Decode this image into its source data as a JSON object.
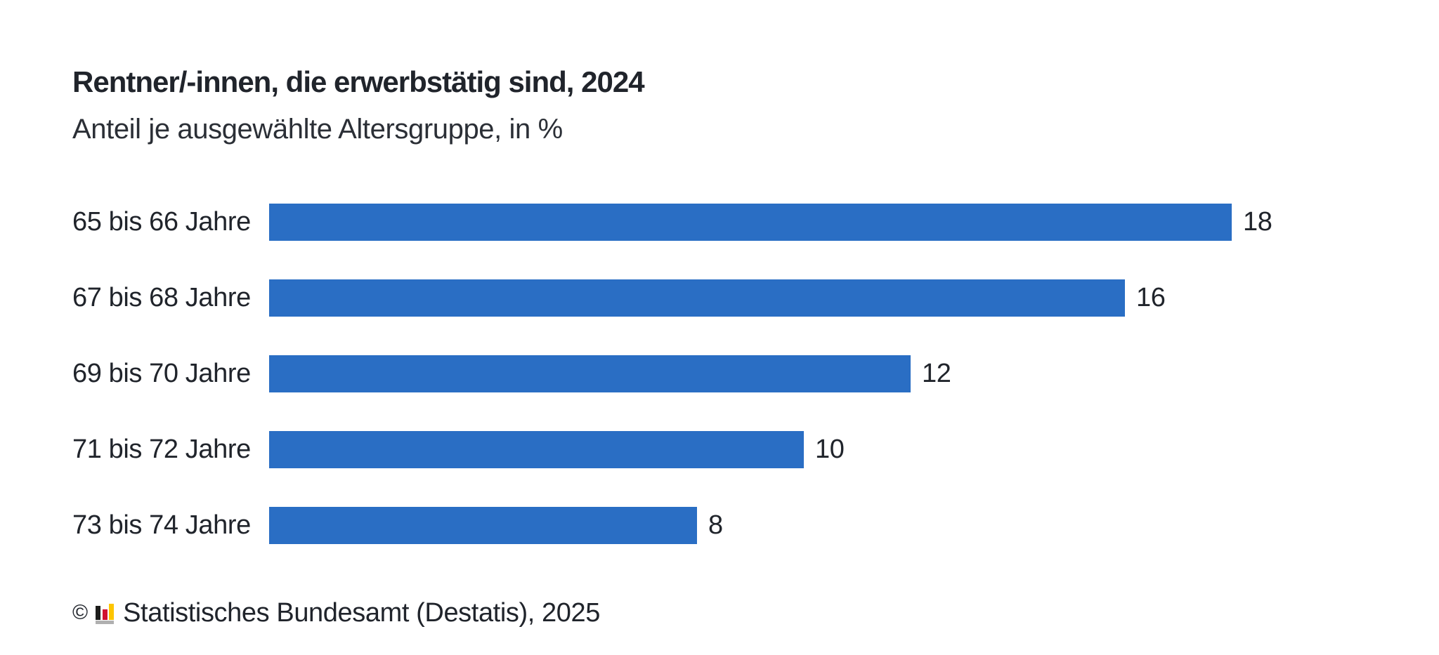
{
  "header": {
    "title": "Rentner/-innen, die erwerbstätig sind, 2024",
    "subtitle": "Anteil je ausgewählte Altersgruppe, in %"
  },
  "chart_data": {
    "type": "bar",
    "orientation": "horizontal",
    "title": "Rentner/-innen, die erwerbstätig sind, 2024",
    "subtitle": "Anteil je ausgewählte Altersgruppe, in %",
    "categories": [
      "65 bis 66 Jahre",
      "67 bis 68 Jahre",
      "69 bis 70 Jahre",
      "71 bis 72 Jahre",
      "73 bis 74 Jahre"
    ],
    "values": [
      18,
      16,
      12,
      10,
      8
    ],
    "unit": "%",
    "value_axis_range": [
      0,
      18
    ],
    "grid": "off",
    "legend": "none",
    "data_labels": "end-of-bar",
    "bar_color": "#2a6ec4",
    "label_color": "#20242b"
  },
  "footer": {
    "copyright_symbol": "©",
    "source_text": "Statistisches Bundesamt (Destatis), 2025",
    "icon": {
      "name": "destatis-bar-chart-icon",
      "color_black": "#1d1d1b",
      "color_red": "#d01030",
      "color_yellow": "#fdc500",
      "color_gray": "#b0b0b0"
    }
  }
}
